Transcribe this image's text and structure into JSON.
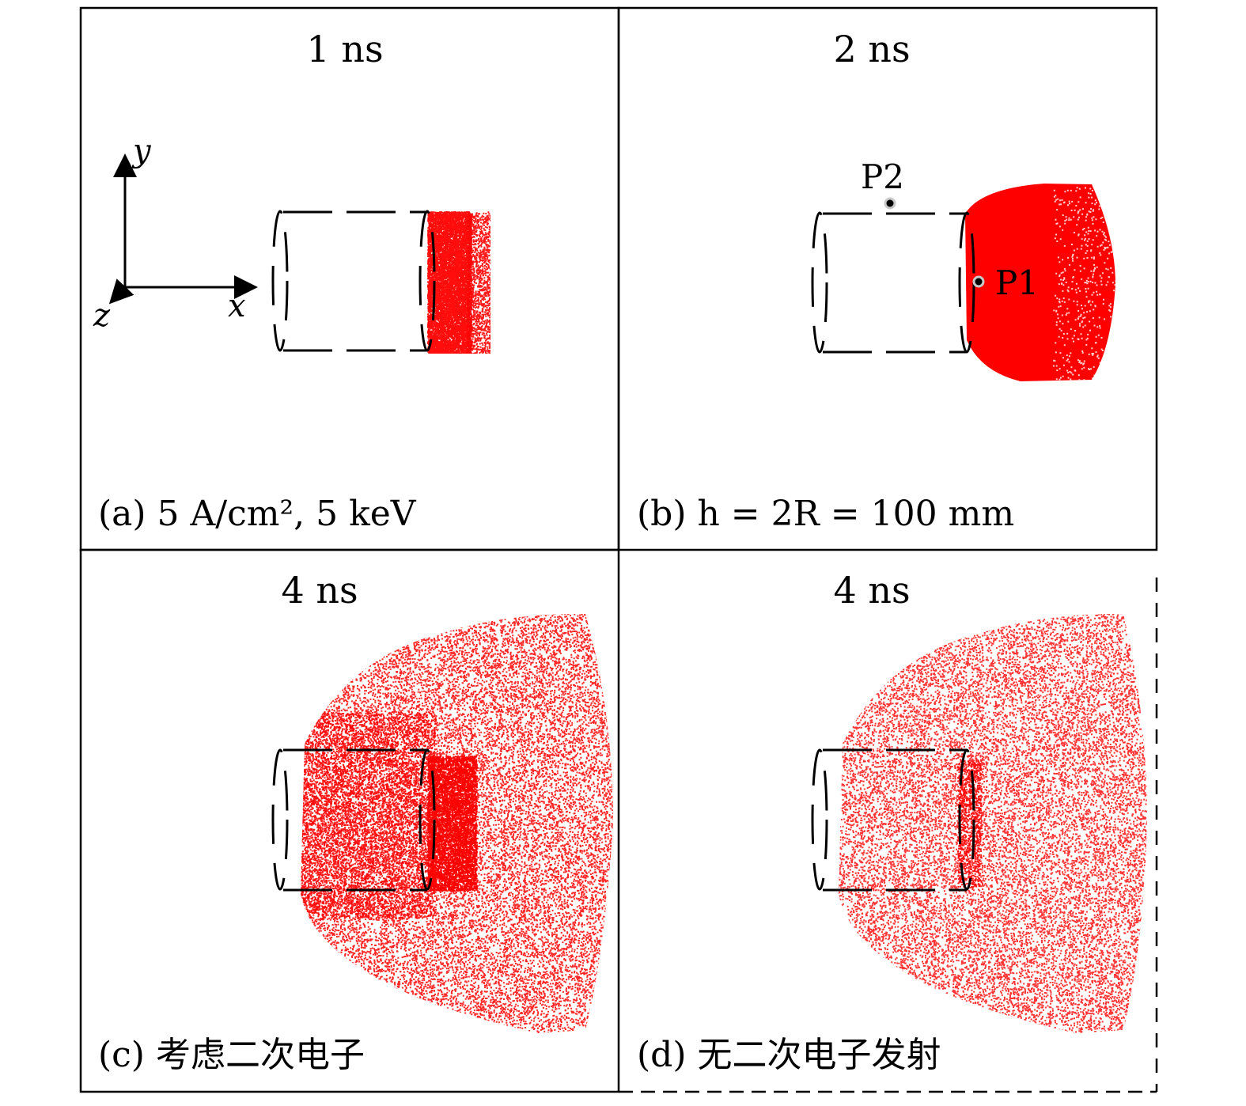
{
  "colors": {
    "particles": "#ff0000",
    "frame": "#000000",
    "background": "#ffffff"
  },
  "axes": {
    "x": "x",
    "y": "y",
    "z": "z"
  },
  "points": {
    "p1": "P1",
    "p2": "P2"
  },
  "panels": [
    {
      "id": "a",
      "time": "1 ns",
      "caption": "(a) 5 A/cm², 5 keV"
    },
    {
      "id": "b",
      "time": "2 ns",
      "caption": "(b) h = 2R = 100 mm"
    },
    {
      "id": "c",
      "time": "4 ns",
      "caption": "(c) 考虑二次电子"
    },
    {
      "id": "d",
      "time": "4 ns",
      "caption": "(d) 无二次电子发射"
    }
  ]
}
